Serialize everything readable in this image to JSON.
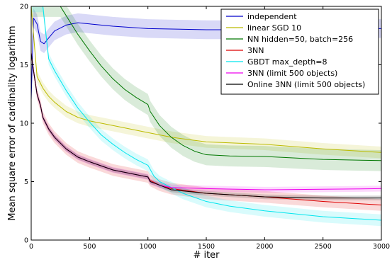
{
  "chart_data": {
    "type": "line",
    "xlabel": "# iter",
    "ylabel": "Mean square error of cardinality logarithm",
    "xlim": [
      0,
      3000
    ],
    "ylim": [
      0,
      20
    ],
    "xticks": [
      0,
      500,
      1000,
      1500,
      2000,
      2500,
      3000
    ],
    "yticks": [
      0,
      5,
      10,
      15,
      20
    ],
    "legend_position": "top-right",
    "series": [
      {
        "name": "independent",
        "color": "#0000cc",
        "x": [
          0,
          20,
          50,
          80,
          110,
          150,
          200,
          300,
          400,
          500,
          700,
          1000,
          1500,
          2000,
          2500,
          3000
        ],
        "y": [
          12.0,
          19.0,
          18.5,
          17.0,
          16.8,
          17.3,
          17.9,
          18.4,
          18.6,
          18.5,
          18.3,
          18.1,
          18.0,
          18.0,
          18.05,
          18.1
        ],
        "band": 0.8
      },
      {
        "name": "linear SGD 10",
        "color": "#bbbb00",
        "x": [
          0,
          50,
          100,
          150,
          200,
          300,
          400,
          500,
          700,
          1000,
          1200,
          1500,
          2000,
          2500,
          3000
        ],
        "y": [
          20.0,
          14.0,
          13.0,
          12.3,
          11.8,
          11.0,
          10.5,
          10.2,
          9.8,
          9.2,
          8.8,
          8.4,
          8.2,
          7.8,
          7.5
        ],
        "band": 0.5
      },
      {
        "name": "NN hidden=50, batch=256",
        "color": "#007700",
        "x": [
          0,
          250,
          300,
          400,
          500,
          600,
          700,
          800,
          900,
          1000,
          1020,
          1100,
          1200,
          1300,
          1400,
          1500,
          1700,
          2000,
          2500,
          3000
        ],
        "y": [
          20.0,
          20.0,
          19.2,
          17.6,
          16.2,
          14.9,
          13.8,
          12.9,
          12.2,
          11.6,
          11.0,
          9.8,
          8.8,
          8.1,
          7.6,
          7.3,
          7.2,
          7.15,
          6.9,
          6.8
        ],
        "band": 0.9
      },
      {
        "name": "3NN",
        "color": "#dd0000",
        "x": [
          0,
          20,
          50,
          80,
          100,
          150,
          200,
          300,
          400,
          500,
          700,
          900,
          1000,
          1020,
          1100,
          1200,
          1500,
          2000,
          2500,
          3000
        ],
        "y": [
          16.0,
          14.5,
          12.5,
          11.5,
          10.5,
          9.5,
          8.8,
          7.8,
          7.1,
          6.7,
          6.0,
          5.6,
          5.4,
          5.1,
          4.7,
          4.4,
          4.0,
          3.7,
          3.3,
          3.0
        ],
        "band": 0.5
      },
      {
        "name": "GBDT max_depth=8",
        "color": "#00e5ee",
        "x": [
          0,
          100,
          150,
          200,
          300,
          400,
          500,
          600,
          700,
          800,
          900,
          1000,
          1050,
          1100,
          1200,
          1300,
          1500,
          1700,
          2000,
          2500,
          3000
        ],
        "y": [
          20.0,
          20.0,
          15.5,
          14.5,
          12.8,
          11.3,
          10.1,
          9.0,
          8.2,
          7.5,
          6.9,
          6.4,
          5.5,
          5.0,
          4.5,
          4.0,
          3.3,
          2.9,
          2.5,
          2.0,
          1.7
        ],
        "band": 0.5
      },
      {
        "name": "3NN (limit 500 objects)",
        "color": "#ee00ee",
        "x": [
          0,
          20,
          50,
          80,
          100,
          150,
          200,
          300,
          400,
          500,
          700,
          900,
          1000,
          1020,
          1100,
          1200,
          1500,
          2000,
          2500,
          3000
        ],
        "y": [
          16.0,
          14.5,
          12.5,
          11.5,
          10.5,
          9.5,
          8.8,
          7.8,
          7.1,
          6.7,
          6.0,
          5.6,
          5.4,
          5.0,
          4.7,
          4.5,
          4.4,
          4.3,
          4.35,
          4.4
        ],
        "band": 0.25
      },
      {
        "name": "Online 3NN (limit 500 objects)",
        "color": "#000000",
        "x": [
          0,
          20,
          50,
          80,
          100,
          150,
          200,
          300,
          400,
          500,
          700,
          900,
          1000,
          1020,
          1100,
          1200,
          1500,
          2000,
          2500,
          3000
        ],
        "y": [
          16.0,
          14.5,
          12.5,
          11.5,
          10.5,
          9.5,
          8.8,
          7.8,
          7.1,
          6.7,
          6.0,
          5.6,
          5.4,
          5.0,
          4.7,
          4.3,
          4.0,
          3.7,
          3.6,
          3.6
        ],
        "band": 0.2
      }
    ]
  }
}
